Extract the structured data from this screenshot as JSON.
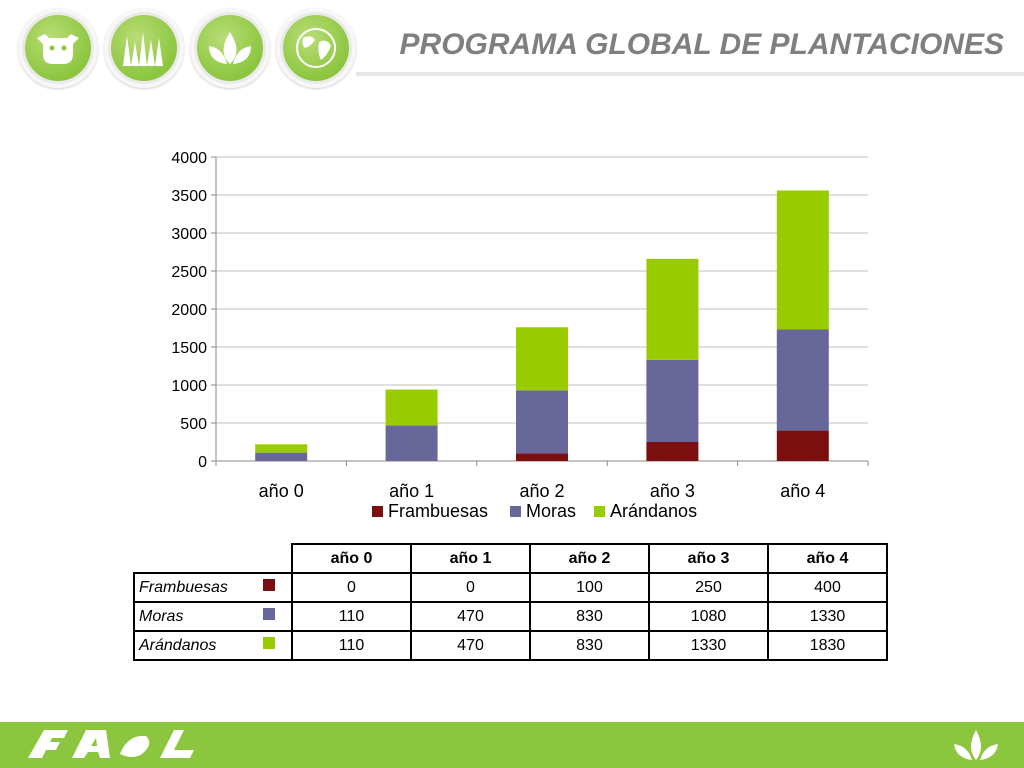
{
  "header": {
    "title": "PROGRAMA GLOBAL DE PLANTACIONES",
    "icons": [
      "cow-icon",
      "grass-icon",
      "leaf-icon",
      "globe-icon"
    ]
  },
  "colors": {
    "frambuesas": "#7b0f0f",
    "moras": "#67679a",
    "arandanos": "#99cc00",
    "brand_green": "#8cc63f",
    "title_gray": "#7f7f7f"
  },
  "chart_data": {
    "type": "bar",
    "stacked": true,
    "categories": [
      "año 0",
      "año 1",
      "año 2",
      "año 3",
      "año 4"
    ],
    "series": [
      {
        "name": "Frambuesas",
        "values": [
          0,
          0,
          100,
          250,
          400
        ]
      },
      {
        "name": "Moras",
        "values": [
          110,
          470,
          830,
          1080,
          1330
        ]
      },
      {
        "name": "Arándanos",
        "values": [
          110,
          470,
          830,
          1330,
          1830
        ]
      }
    ],
    "ylim": [
      0,
      4000
    ],
    "yticks": [
      0,
      500,
      1000,
      1500,
      2000,
      2500,
      3000,
      3500,
      4000
    ],
    "grid": true,
    "legend": "bottom"
  },
  "table": {
    "headers": [
      "año 0",
      "año 1",
      "año 2",
      "año 3",
      "año 4"
    ],
    "rows": [
      {
        "label": "Frambuesas",
        "values": [
          "0",
          "0",
          "100",
          "250",
          "400"
        ]
      },
      {
        "label": "Moras",
        "values": [
          "110",
          "470",
          "830",
          "1080",
          "1330"
        ]
      },
      {
        "label": "Arándanos",
        "values": [
          "110",
          "470",
          "830",
          "1330",
          "1830"
        ]
      }
    ]
  }
}
